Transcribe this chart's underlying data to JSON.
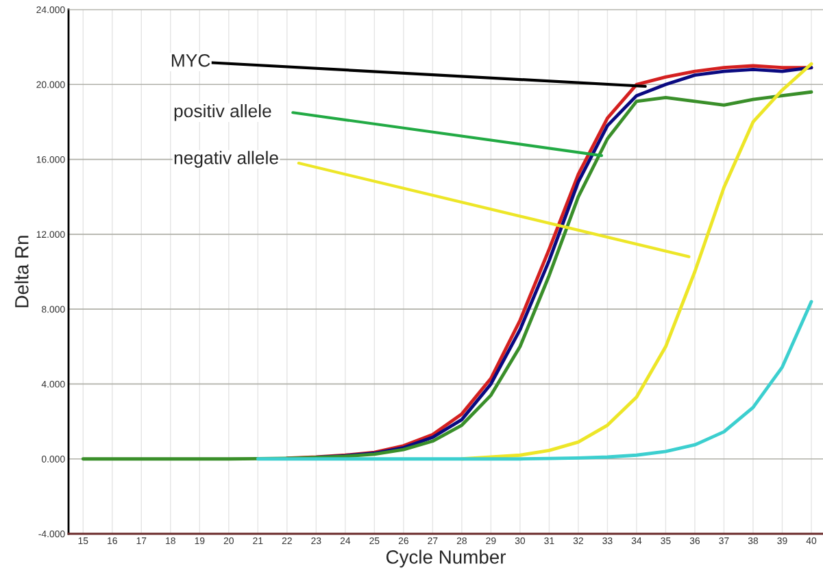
{
  "chart_data": {
    "type": "line",
    "xlabel": "Cycle Number",
    "ylabel": "Delta Rn",
    "x": [
      15,
      16,
      17,
      18,
      19,
      20,
      21,
      22,
      23,
      24,
      25,
      26,
      27,
      28,
      29,
      30,
      31,
      32,
      33,
      34,
      35,
      36,
      37,
      38,
      39,
      40
    ],
    "series": [
      {
        "color": "#d42020",
        "values": [
          null,
          null,
          null,
          null,
          null,
          null,
          null,
          0.04,
          0.1,
          0.2,
          0.35,
          0.7,
          1.3,
          2.4,
          4.3,
          7.4,
          11.2,
          15.2,
          18.2,
          20.0,
          20.4,
          20.7,
          20.9,
          21.0,
          20.9,
          20.9
        ]
      },
      {
        "color": "#0a0a80",
        "values": [
          null,
          null,
          null,
          null,
          null,
          null,
          null,
          null,
          0.08,
          0.17,
          0.3,
          0.6,
          1.15,
          2.1,
          4.0,
          6.9,
          10.6,
          14.8,
          17.8,
          19.4,
          20.0,
          20.5,
          20.7,
          20.8,
          20.7,
          20.9
        ]
      },
      {
        "color": "#3a8f2a",
        "values": [
          0,
          0,
          0,
          0,
          0,
          0,
          0.01,
          0.03,
          0.07,
          0.14,
          0.25,
          0.5,
          0.95,
          1.8,
          3.4,
          6.0,
          9.8,
          14.0,
          17.1,
          19.1,
          19.3,
          19.1,
          18.9,
          19.2,
          19.4,
          19.6
        ]
      },
      {
        "color": "#ede628",
        "values": [
          null,
          null,
          null,
          null,
          null,
          null,
          null,
          null,
          null,
          null,
          null,
          null,
          null,
          0,
          0.1,
          0.2,
          0.45,
          0.9,
          1.8,
          3.3,
          6.0,
          10.0,
          14.5,
          18.0,
          19.7,
          21.1
        ]
      },
      {
        "color": "#3ccfcf",
        "values": [
          null,
          null,
          null,
          null,
          null,
          null,
          0,
          0,
          0,
          0,
          0,
          0,
          0,
          0,
          0,
          0,
          0.02,
          0.05,
          0.1,
          0.2,
          0.4,
          0.75,
          1.45,
          2.75,
          4.9,
          8.4
        ]
      }
    ],
    "xlim": [
      14.5,
      40.4
    ],
    "ylim": [
      -4,
      24
    ],
    "xticks": [
      15,
      16,
      17,
      18,
      19,
      20,
      21,
      22,
      23,
      24,
      25,
      26,
      27,
      28,
      29,
      30,
      31,
      32,
      33,
      34,
      35,
      36,
      37,
      38,
      39,
      40
    ],
    "yticks": [
      {
        "value": -4,
        "label": "-4.000"
      },
      {
        "value": 0,
        "label": "0.000"
      },
      {
        "value": 4,
        "label": "4.000"
      },
      {
        "value": 8,
        "label": "8.000"
      },
      {
        "value": 12,
        "label": "12.000"
      },
      {
        "value": 16,
        "label": "16.000"
      },
      {
        "value": 20,
        "label": "20.000"
      },
      {
        "value": 24,
        "label": "24.000"
      }
    ],
    "annotations": [
      {
        "text": "MYC",
        "x": 34.3,
        "y": 19.9
      },
      {
        "text": "positiv allele",
        "x": 32.8,
        "y": 16.2
      },
      "negativ allele"
    ],
    "grid": true,
    "marker": "none",
    "line_style": "solid"
  }
}
